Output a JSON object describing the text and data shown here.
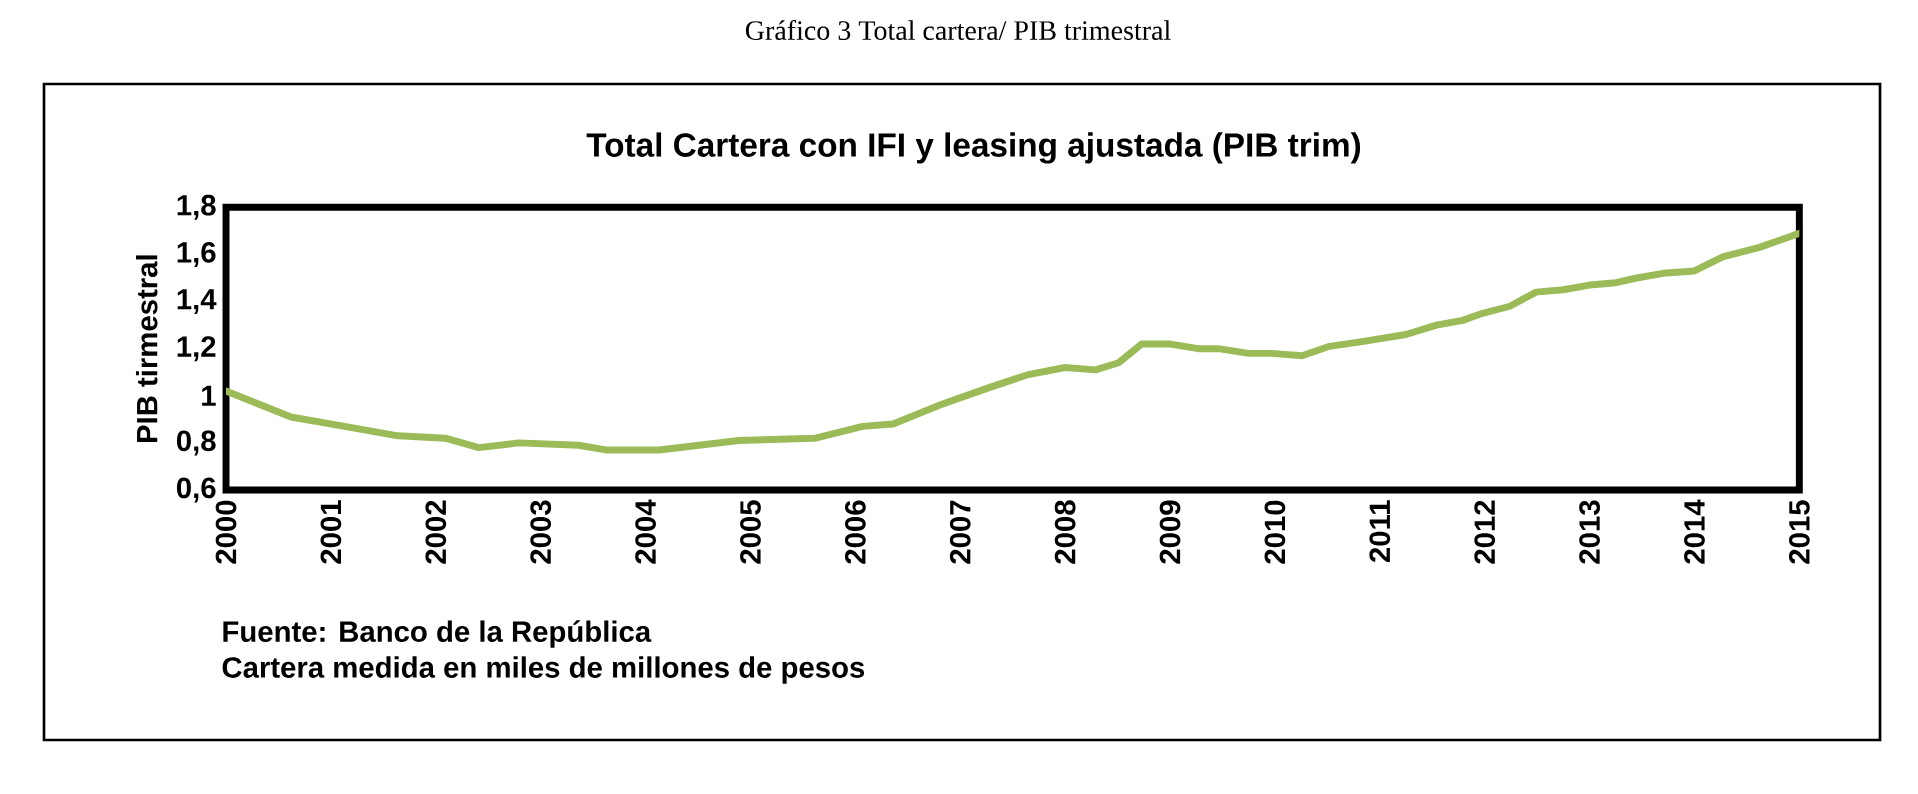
{
  "chart_data": {
    "type": "line",
    "title": "Gráfico 3 Total cartera/ PIB trimestral",
    "subtitle": "Total Cartera  con IFI y leasing ajustada (PIB trim)",
    "ylabel": "PIB tirmestral",
    "annotations": [
      "Fuente: Banco de la República",
      "Cartera medida en miles de millones de pesos"
    ],
    "series": [
      {
        "color": "#9bbb59",
        "x": [
          2000.0,
          2000.62,
          2001.13,
          2001.64,
          2002.09,
          2002.41,
          2002.79,
          2003.36,
          2003.62,
          2004.13,
          2004.89,
          2005.62,
          2006.07,
          2006.36,
          2006.8,
          2006.99,
          2007.31,
          2007.65,
          2008.0,
          2008.29,
          2008.51,
          2008.73,
          2008.99,
          2009.27,
          2009.46,
          2009.75,
          2009.97,
          2010.26,
          2010.52,
          2010.83,
          2011.25,
          2011.54,
          2011.79,
          2011.98,
          2012.24,
          2012.49,
          2012.75,
          2013.0,
          2013.25,
          2013.45,
          2013.7,
          2014.0,
          2014.27,
          2014.62,
          2015.0
        ],
        "values": [
          1.02,
          0.91,
          0.87,
          0.83,
          0.82,
          0.78,
          0.8,
          0.79,
          0.77,
          0.77,
          0.81,
          0.82,
          0.87,
          0.88,
          0.96,
          0.99,
          1.04,
          1.09,
          1.12,
          1.11,
          1.14,
          1.22,
          1.22,
          1.2,
          1.2,
          1.18,
          1.18,
          1.17,
          1.21,
          1.23,
          1.26,
          1.3,
          1.32,
          1.35,
          1.38,
          1.44,
          1.45,
          1.47,
          1.48,
          1.5,
          1.52,
          1.53,
          1.59,
          1.63,
          1.69
        ]
      }
    ],
    "xlim": [
      2000,
      2015
    ],
    "xticks": [
      2000,
      2001,
      2002,
      2003,
      2004,
      2005,
      2006,
      2007,
      2008,
      2009,
      2010,
      2011,
      2012,
      2013,
      2014,
      2015
    ],
    "ylim": [
      0.6,
      1.8
    ],
    "yticks": [
      {
        "value": 0.6,
        "label": "0,6"
      },
      {
        "value": 0.8,
        "label": "0,8"
      },
      1,
      {
        "value": 1.2,
        "label": "1,2"
      },
      {
        "value": 1.4,
        "label": "1,4"
      },
      {
        "value": 1.6,
        "label": "1,6"
      },
      {
        "value": 1.8,
        "label": "1,8"
      }
    ],
    "grid": false,
    "marker": "none",
    "line_style": "solid"
  }
}
